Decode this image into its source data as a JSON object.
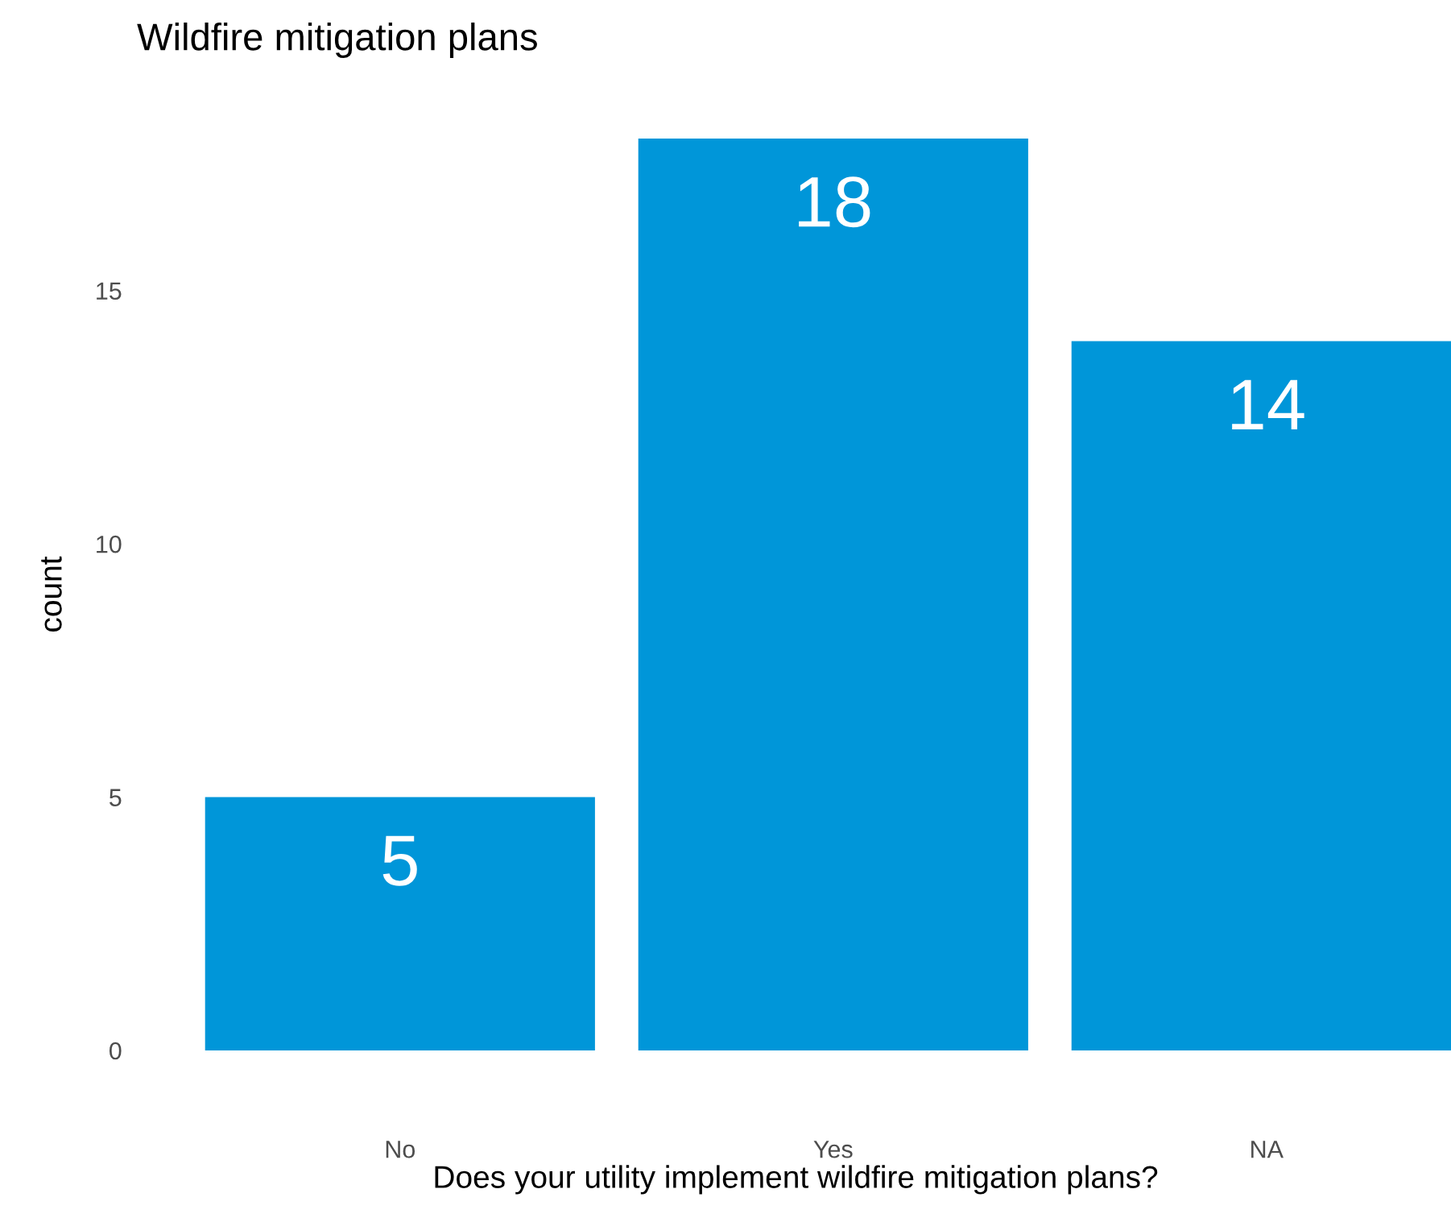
{
  "chart_data": {
    "type": "bar",
    "title": "Wildfire mitigation plans",
    "xlabel": "Does your utility implement wildfire mitigation plans?",
    "ylabel": "count",
    "categories": [
      "No",
      "Yes",
      "NA"
    ],
    "values": [
      5,
      18,
      14
    ],
    "color": "#0096d9",
    "ylim": [
      0,
      18
    ],
    "yticks": [
      0,
      5,
      10,
      15
    ],
    "grid": false,
    "data_labels": true
  }
}
